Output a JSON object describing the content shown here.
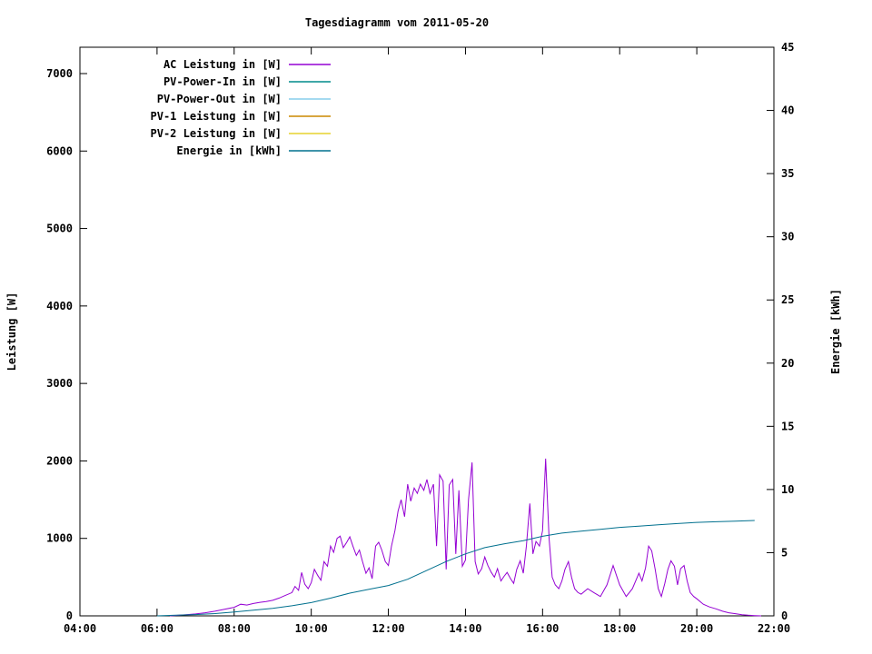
{
  "title": "Tagesdiagramm vom 2011-05-20",
  "axes": {
    "left_label": "Leistung [W]",
    "right_label": "Energie [kWh]",
    "x_tick_labels": [
      "04:00",
      "06:00",
      "08:00",
      "10:00",
      "12:00",
      "14:00",
      "16:00",
      "18:00",
      "20:00",
      "22:00"
    ],
    "x_tick_hours": [
      4,
      6,
      8,
      10,
      12,
      14,
      16,
      18,
      20,
      22
    ],
    "left_tick_values": [
      0,
      1000,
      2000,
      3000,
      4000,
      5000,
      6000,
      7000
    ],
    "right_tick_values": [
      0,
      5,
      10,
      15,
      20,
      25,
      30,
      35,
      40,
      45
    ]
  },
  "legend": [
    {
      "label": "AC Leistung in [W]",
      "color": "#9400d3"
    },
    {
      "label": "PV-Power-In in [W]",
      "color": "#008b8b"
    },
    {
      "label": "PV-Power-Out in [W]",
      "color": "#87ceeb"
    },
    {
      "label": "PV-1 Leistung in [W]",
      "color": "#cc8800"
    },
    {
      "label": "PV-2 Leistung in [W]",
      "color": "#e6d22e"
    },
    {
      "label": "Energie in [kWh]",
      "color": "#00708e"
    }
  ],
  "chart_data": {
    "type": "line",
    "title": "Tagesdiagramm vom 2011-05-20",
    "xlabel": "",
    "ylabel_left": "Leistung [W]",
    "ylabel_right": "Energie [kWh]",
    "x_unit": "hour_of_day",
    "xlim": [
      4,
      22
    ],
    "ylim_left": [
      0,
      7340
    ],
    "ylim_right": [
      0,
      45
    ],
    "grid": false,
    "legend_position": "top-left-inside",
    "series": [
      {
        "name": "AC Leistung in [W]",
        "color": "#9400d3",
        "axis": "left",
        "visible_in_plot": true,
        "points": [
          [
            6.33,
            0
          ],
          [
            6.5,
            6
          ],
          [
            6.75,
            14
          ],
          [
            7.0,
            25
          ],
          [
            7.25,
            40
          ],
          [
            7.5,
            60
          ],
          [
            7.75,
            85
          ],
          [
            8.0,
            110
          ],
          [
            8.17,
            150
          ],
          [
            8.33,
            140
          ],
          [
            8.5,
            160
          ],
          [
            8.67,
            175
          ],
          [
            8.83,
            185
          ],
          [
            9.0,
            200
          ],
          [
            9.17,
            230
          ],
          [
            9.33,
            265
          ],
          [
            9.5,
            300
          ],
          [
            9.58,
            380
          ],
          [
            9.67,
            330
          ],
          [
            9.75,
            560
          ],
          [
            9.83,
            410
          ],
          [
            9.92,
            350
          ],
          [
            10.0,
            430
          ],
          [
            10.08,
            600
          ],
          [
            10.17,
            520
          ],
          [
            10.25,
            460
          ],
          [
            10.33,
            700
          ],
          [
            10.42,
            640
          ],
          [
            10.5,
            900
          ],
          [
            10.58,
            820
          ],
          [
            10.67,
            1000
          ],
          [
            10.75,
            1030
          ],
          [
            10.83,
            880
          ],
          [
            10.92,
            950
          ],
          [
            11.0,
            1020
          ],
          [
            11.08,
            900
          ],
          [
            11.17,
            780
          ],
          [
            11.25,
            850
          ],
          [
            11.33,
            700
          ],
          [
            11.42,
            550
          ],
          [
            11.5,
            620
          ],
          [
            11.58,
            480
          ],
          [
            11.67,
            900
          ],
          [
            11.75,
            950
          ],
          [
            11.83,
            850
          ],
          [
            11.92,
            700
          ],
          [
            12.0,
            650
          ],
          [
            12.08,
            900
          ],
          [
            12.17,
            1100
          ],
          [
            12.25,
            1350
          ],
          [
            12.33,
            1500
          ],
          [
            12.42,
            1280
          ],
          [
            12.5,
            1700
          ],
          [
            12.58,
            1480
          ],
          [
            12.67,
            1650
          ],
          [
            12.75,
            1580
          ],
          [
            12.83,
            1700
          ],
          [
            12.92,
            1620
          ],
          [
            13.0,
            1760
          ],
          [
            13.08,
            1580
          ],
          [
            13.17,
            1700
          ],
          [
            13.25,
            900
          ],
          [
            13.33,
            1820
          ],
          [
            13.42,
            1740
          ],
          [
            13.5,
            600
          ],
          [
            13.58,
            1690
          ],
          [
            13.67,
            1760
          ],
          [
            13.75,
            800
          ],
          [
            13.83,
            1620
          ],
          [
            13.92,
            640
          ],
          [
            14.0,
            720
          ],
          [
            14.08,
            1500
          ],
          [
            14.17,
            1980
          ],
          [
            14.25,
            700
          ],
          [
            14.33,
            540
          ],
          [
            14.42,
            610
          ],
          [
            14.5,
            760
          ],
          [
            14.58,
            650
          ],
          [
            14.67,
            560
          ],
          [
            14.75,
            500
          ],
          [
            14.83,
            610
          ],
          [
            14.92,
            450
          ],
          [
            15.0,
            510
          ],
          [
            15.08,
            560
          ],
          [
            15.17,
            480
          ],
          [
            15.25,
            420
          ],
          [
            15.33,
            600
          ],
          [
            15.42,
            710
          ],
          [
            15.5,
            550
          ],
          [
            15.58,
            900
          ],
          [
            15.67,
            1450
          ],
          [
            15.75,
            800
          ],
          [
            15.83,
            960
          ],
          [
            15.92,
            900
          ],
          [
            16.0,
            1100
          ],
          [
            16.08,
            2030
          ],
          [
            16.17,
            1000
          ],
          [
            16.25,
            500
          ],
          [
            16.33,
            400
          ],
          [
            16.42,
            350
          ],
          [
            16.5,
            450
          ],
          [
            16.58,
            600
          ],
          [
            16.67,
            700
          ],
          [
            16.75,
            500
          ],
          [
            16.83,
            350
          ],
          [
            16.92,
            300
          ],
          [
            17.0,
            280
          ],
          [
            17.17,
            350
          ],
          [
            17.33,
            300
          ],
          [
            17.5,
            250
          ],
          [
            17.67,
            400
          ],
          [
            17.83,
            650
          ],
          [
            18.0,
            400
          ],
          [
            18.17,
            250
          ],
          [
            18.33,
            350
          ],
          [
            18.5,
            550
          ],
          [
            18.58,
            450
          ],
          [
            18.67,
            620
          ],
          [
            18.75,
            900
          ],
          [
            18.83,
            840
          ],
          [
            18.92,
            600
          ],
          [
            19.0,
            350
          ],
          [
            19.08,
            250
          ],
          [
            19.17,
            420
          ],
          [
            19.25,
            600
          ],
          [
            19.33,
            710
          ],
          [
            19.42,
            640
          ],
          [
            19.5,
            400
          ],
          [
            19.58,
            610
          ],
          [
            19.67,
            650
          ],
          [
            19.75,
            450
          ],
          [
            19.83,
            300
          ],
          [
            19.92,
            250
          ],
          [
            20.0,
            220
          ],
          [
            20.17,
            150
          ],
          [
            20.33,
            115
          ],
          [
            20.5,
            90
          ],
          [
            20.67,
            60
          ],
          [
            20.83,
            40
          ],
          [
            21.0,
            28
          ],
          [
            21.17,
            15
          ],
          [
            21.33,
            8
          ],
          [
            21.5,
            3
          ],
          [
            21.67,
            0
          ]
        ]
      },
      {
        "name": "PV-Power-In in [W]",
        "color": "#008b8b",
        "axis": "left",
        "visible_in_plot": false,
        "points": []
      },
      {
        "name": "PV-Power-Out in [W]",
        "color": "#87ceeb",
        "axis": "left",
        "visible_in_plot": false,
        "points": []
      },
      {
        "name": "PV-1 Leistung in [W]",
        "color": "#cc8800",
        "axis": "left",
        "visible_in_plot": false,
        "points": []
      },
      {
        "name": "PV-2 Leistung in [W]",
        "color": "#e6d22e",
        "axis": "left",
        "visible_in_plot": false,
        "points": []
      },
      {
        "name": "Energie in [kWh]",
        "color": "#00708e",
        "axis": "right",
        "visible_in_plot": true,
        "points": [
          [
            6.0,
            0
          ],
          [
            6.5,
            0.05
          ],
          [
            7.0,
            0.1
          ],
          [
            7.5,
            0.18
          ],
          [
            8.0,
            0.3
          ],
          [
            8.5,
            0.45
          ],
          [
            9.0,
            0.6
          ],
          [
            9.5,
            0.8
          ],
          [
            10.0,
            1.05
          ],
          [
            10.5,
            1.4
          ],
          [
            11.0,
            1.8
          ],
          [
            11.5,
            2.1
          ],
          [
            12.0,
            2.4
          ],
          [
            12.5,
            2.9
          ],
          [
            13.0,
            3.6
          ],
          [
            13.5,
            4.3
          ],
          [
            14.0,
            4.9
          ],
          [
            14.5,
            5.4
          ],
          [
            15.0,
            5.7
          ],
          [
            15.5,
            5.95
          ],
          [
            16.0,
            6.3
          ],
          [
            16.5,
            6.55
          ],
          [
            17.0,
            6.7
          ],
          [
            17.5,
            6.85
          ],
          [
            18.0,
            7.0
          ],
          [
            18.5,
            7.1
          ],
          [
            19.0,
            7.2
          ],
          [
            19.5,
            7.3
          ],
          [
            20.0,
            7.4
          ],
          [
            20.5,
            7.45
          ],
          [
            21.0,
            7.5
          ],
          [
            21.5,
            7.55
          ]
        ]
      }
    ]
  }
}
